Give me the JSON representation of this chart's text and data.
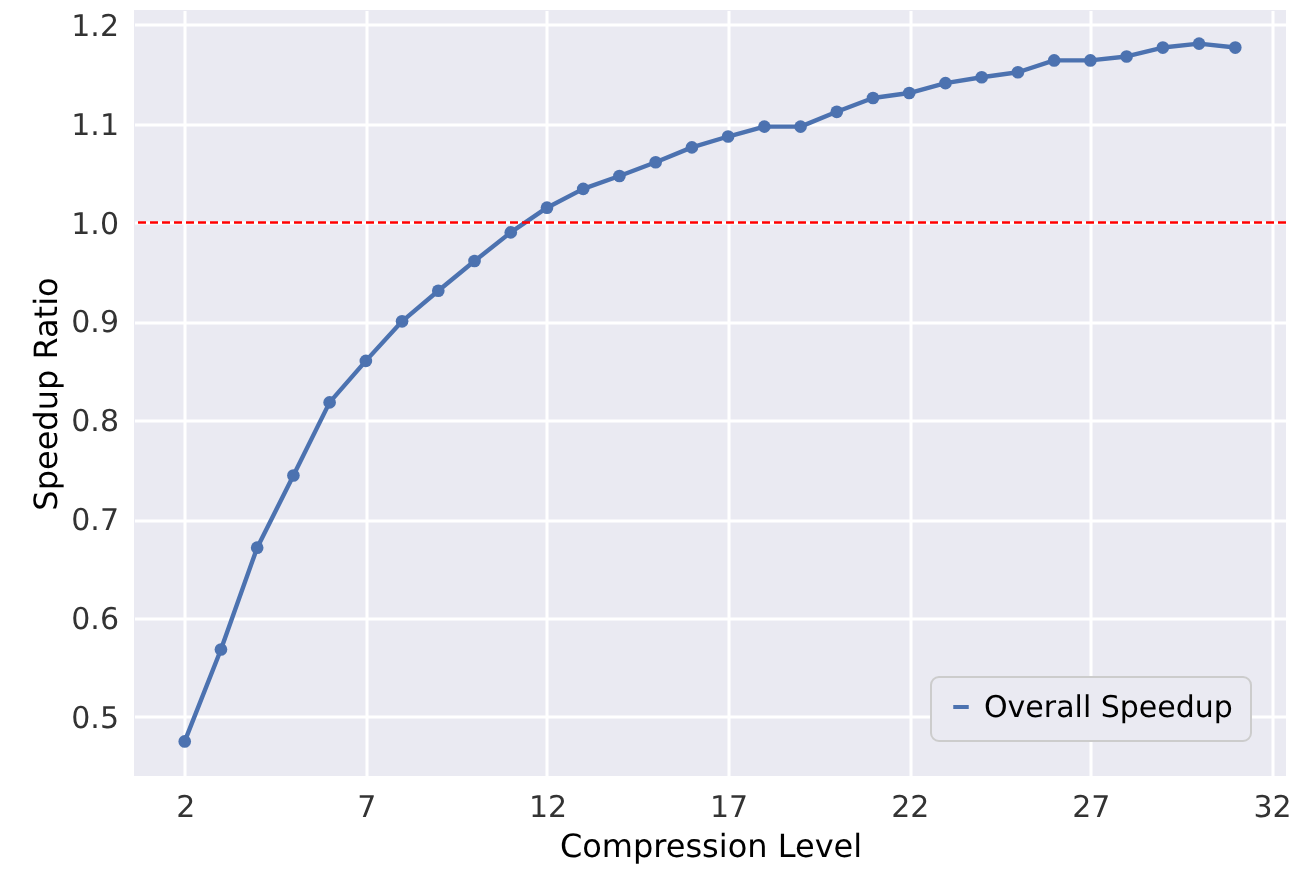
{
  "chart_data": {
    "type": "line",
    "xlabel": "Compression Level",
    "ylabel": "Speedup Ratio",
    "x": [
      2,
      3,
      4,
      5,
      6,
      7,
      8,
      9,
      10,
      11,
      12,
      13,
      14,
      15,
      16,
      17,
      18,
      19,
      20,
      21,
      22,
      23,
      24,
      25,
      26,
      27,
      28,
      29,
      30,
      31
    ],
    "series": [
      {
        "name": "Overall Speedup",
        "color": "#4c72b0",
        "values": [
          0.475,
          0.568,
          0.671,
          0.744,
          0.818,
          0.86,
          0.9,
          0.931,
          0.961,
          0.99,
          1.015,
          1.034,
          1.047,
          1.061,
          1.076,
          1.087,
          1.097,
          1.097,
          1.112,
          1.126,
          1.131,
          1.141,
          1.147,
          1.152,
          1.164,
          1.164,
          1.168,
          1.177,
          1.181,
          1.177
        ]
      }
    ],
    "xlim": [
      0.6,
      32.4
    ],
    "xticks": [
      2,
      7,
      12,
      17,
      22,
      27,
      32
    ],
    "ylim": [
      0.44,
      1.215
    ],
    "yticks": [
      0.5,
      0.6,
      0.7,
      0.8,
      0.9,
      {
        "value": 1,
        "label": "1.0"
      },
      1.1,
      1.2
    ],
    "ref_lines": [
      {
        "axis": "y",
        "value": 1.0,
        "label": null,
        "color": "#ff0000",
        "line_style": "dashed"
      }
    ],
    "grid": true,
    "legend": "bottom right",
    "marker": "circle",
    "line_style": "solid"
  }
}
